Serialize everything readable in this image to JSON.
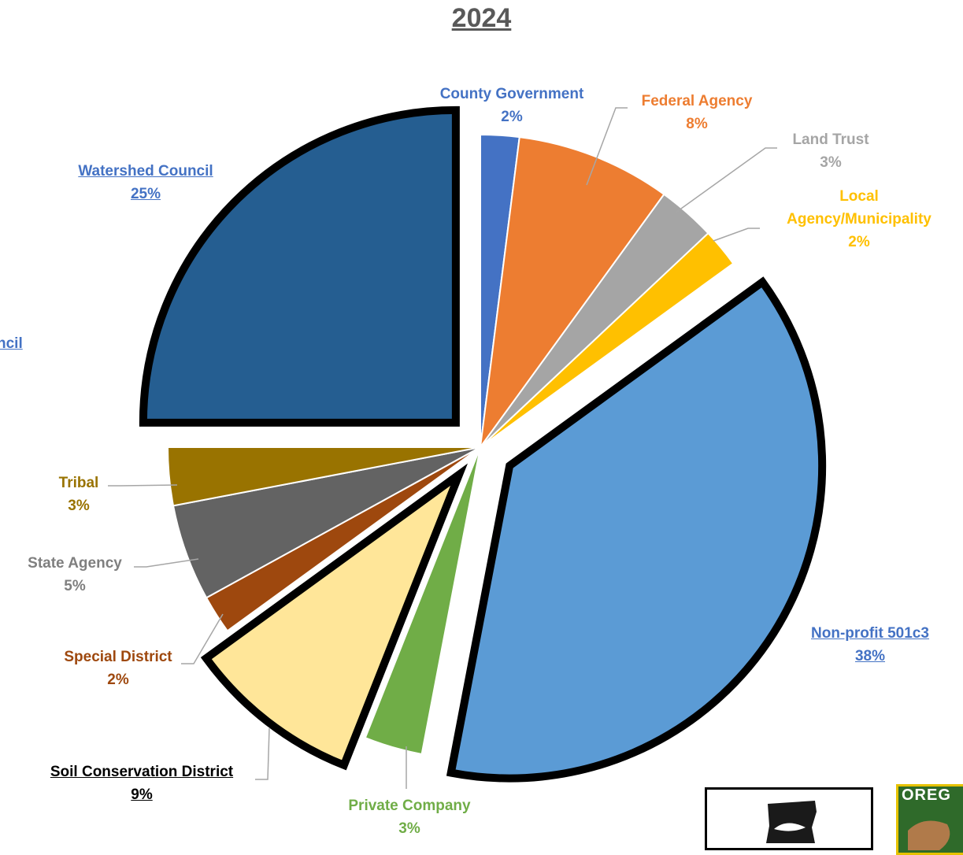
{
  "chart_data": {
    "type": "pie",
    "title": "2024",
    "slices": [
      {
        "label": "County Government",
        "percent_label": "2%",
        "value": 2,
        "color": "#4472c4",
        "exploded": false
      },
      {
        "label": "Federal Agency",
        "percent_label": "8%",
        "value": 8,
        "color": "#ed7d31",
        "exploded": false
      },
      {
        "label": "Land Trust",
        "percent_label": "3%",
        "value": 3,
        "color": "#a5a5a5",
        "exploded": false
      },
      {
        "label": "Local Agency/Municipality",
        "percent_label": "2%",
        "value": 2,
        "color": "#ffc000",
        "exploded": false
      },
      {
        "label": "Non-profit 501c3",
        "percent_label": "38%",
        "value": 38,
        "color": "#5b9bd5",
        "exploded": true
      },
      {
        "label": "Private Company",
        "percent_label": "3%",
        "value": 3,
        "color": "#70ad47",
        "exploded": false
      },
      {
        "label": "Soil Conservation District",
        "percent_label": "9%",
        "value": 9,
        "color": "#ffe699",
        "exploded": true
      },
      {
        "label": "Special District",
        "percent_label": "2%",
        "value": 2,
        "color": "#9e480e",
        "exploded": false
      },
      {
        "label": "State Agency",
        "percent_label": "5%",
        "value": 5,
        "color": "#636363",
        "exploded": false
      },
      {
        "label": "Tribal",
        "percent_label": "3%",
        "value": 3,
        "color": "#997300",
        "exploded": false
      },
      {
        "label": "Watershed Council",
        "percent_label": "25%",
        "value": 25,
        "color": "#255e91",
        "exploded": true
      }
    ],
    "labels": {
      "county_government": {
        "name": "County Government",
        "pct": "2%",
        "color": "#4472c4"
      },
      "federal_agency": {
        "name": "Federal Agency",
        "pct": "8%",
        "color": "#ed7d31"
      },
      "land_trust": {
        "name": "Land Trust",
        "pct": "3%",
        "color": "#a5a5a5"
      },
      "local_agency_line1": "Local",
      "local_agency_line2": "Agency/Municipality",
      "local_agency_pct": "2%",
      "non_profit": {
        "name": "Non-profit 501c3",
        "pct": "38%",
        "color": "#4472c4"
      },
      "private_company": {
        "name": "Private Company",
        "pct": "3%",
        "color": "#70ad47"
      },
      "soil_conservation": {
        "name": "Soil Conservation District",
        "pct": "9%",
        "color": "#000000"
      },
      "special_district": {
        "name": "Special District",
        "pct": "2%",
        "color": "#9e480e"
      },
      "state_agency": {
        "name": "State Agency",
        "pct": "5%",
        "color": "#7f7f7f"
      },
      "tribal": {
        "name": "Tribal",
        "pct": "3%",
        "color": "#997300"
      },
      "watershed_council": {
        "name": "Watershed Council",
        "pct": "25%",
        "color": "#4472c4"
      },
      "cut_off_left_text": "ncil"
    }
  },
  "logos": {
    "badge_text": "OREG"
  }
}
